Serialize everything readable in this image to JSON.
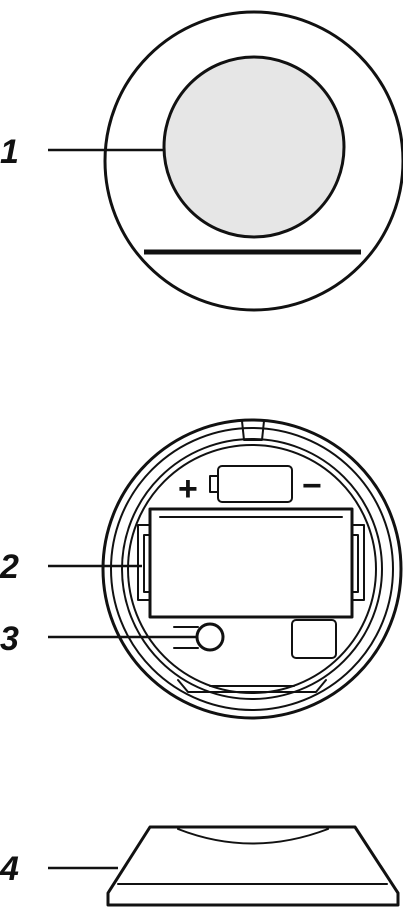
{
  "callouts": [
    {
      "label": "1"
    },
    {
      "label": "2"
    },
    {
      "label": "3"
    },
    {
      "label": "4"
    }
  ],
  "battery_polarity": {
    "plus": "+",
    "minus": "−"
  },
  "colors": {
    "line": "#111111",
    "lens_fill": "#e6e6e6",
    "background": "#ffffff"
  }
}
